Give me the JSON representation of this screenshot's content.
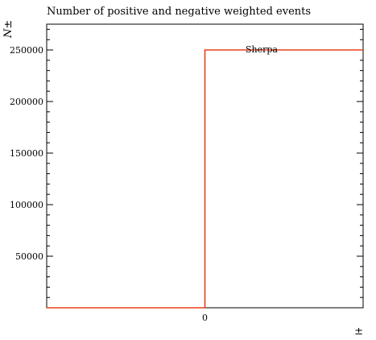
{
  "chart_data": {
    "type": "step",
    "title": "Number of positive and negative weighted events",
    "ylabel": "N±",
    "xlabel": "±",
    "xlim": [
      -1,
      1
    ],
    "ylim": [
      0,
      275000
    ],
    "x_ticks": [
      {
        "value": 0,
        "label": "0"
      }
    ],
    "y_ticks": [
      {
        "value": 50000,
        "label": "50000"
      },
      {
        "value": 100000,
        "label": "100000"
      },
      {
        "value": 150000,
        "label": "150000"
      },
      {
        "value": 200000,
        "label": "200000"
      },
      {
        "value": 250000,
        "label": "250000"
      }
    ],
    "series": [
      {
        "name": "Sherpa",
        "color": "#e8401c",
        "bins": [
          {
            "x_low": -1,
            "x_high": 0,
            "value": 0
          },
          {
            "x_low": 0,
            "x_high": 1,
            "value": 250000
          }
        ]
      }
    ],
    "legend_position": "top-center"
  }
}
